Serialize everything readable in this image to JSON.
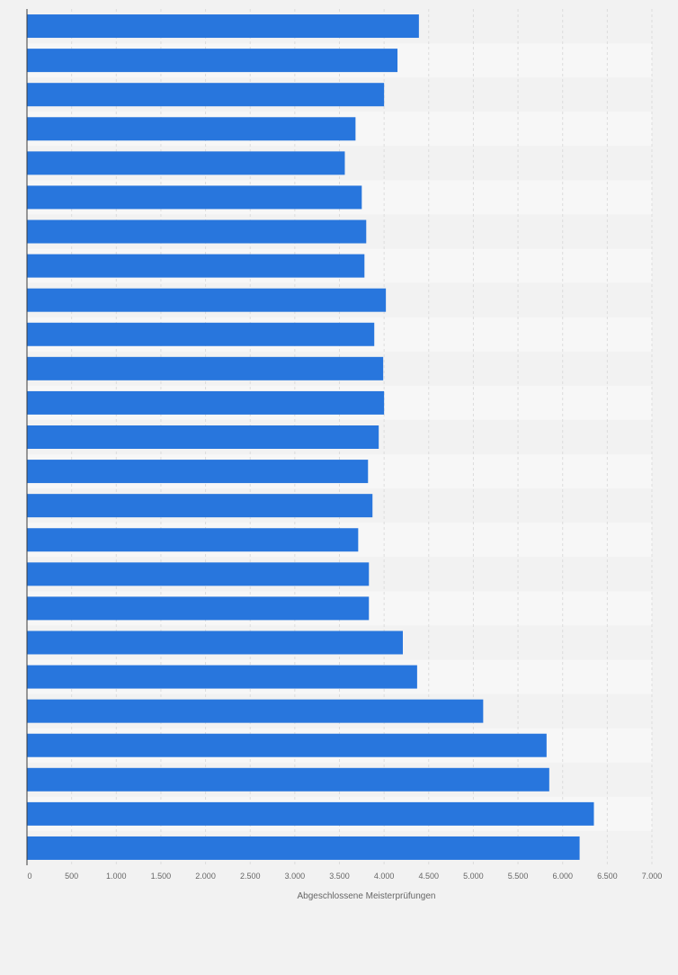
{
  "chart_data": {
    "type": "bar",
    "orientation": "horizontal",
    "title": "",
    "xlabel": "Abgeschlossene Meisterprüfungen",
    "ylabel": "",
    "xlim": [
      0,
      7000
    ],
    "xticks": [
      0,
      500,
      1000,
      1500,
      2000,
      2500,
      3000,
      3500,
      4000,
      4500,
      5000,
      5500,
      6000,
      6500,
      7000
    ],
    "xtick_labels": [
      "0",
      "500",
      "1.000",
      "1.500",
      "2.000",
      "2.500",
      "3.000",
      "3.500",
      "4.000",
      "4.500",
      "5.000",
      "5.500",
      "6.000",
      "6.500",
      "7.000"
    ],
    "values": [
      4390,
      4150,
      4000,
      3680,
      3560,
      3750,
      3800,
      3780,
      4020,
      3890,
      3990,
      4000,
      3940,
      3820,
      3870,
      3710,
      3830,
      3830,
      4210,
      4370,
      5110,
      5820,
      5850,
      6350,
      6190
    ],
    "bar_color": "#2876dd",
    "grid": true,
    "legend": "none"
  }
}
